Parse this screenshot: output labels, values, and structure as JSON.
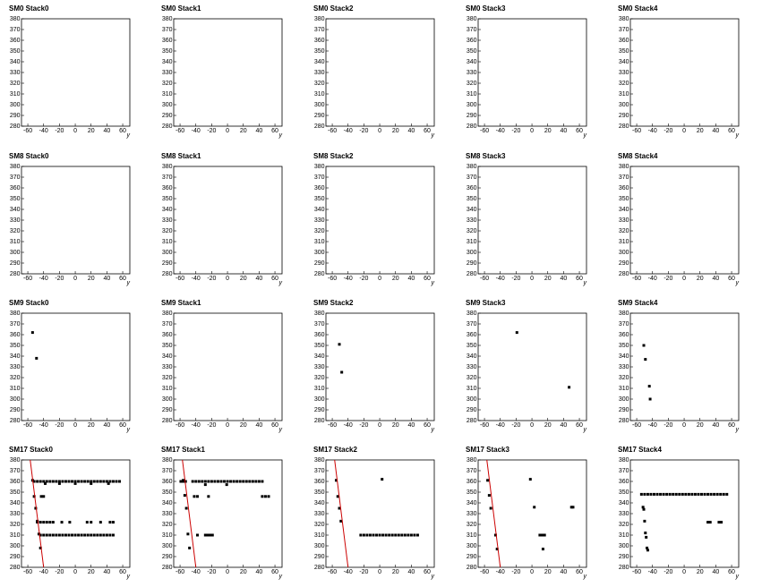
{
  "chart_data": [
    {
      "type": "scatter",
      "title": "SM0 Stack0",
      "xlabel": "y",
      "x": [],
      "values": [],
      "xlim": [
        -68,
        69
      ],
      "ylim": [
        280,
        380
      ],
      "xticks": [
        -60,
        -40,
        -20,
        0,
        20,
        40,
        60
      ],
      "yticks": [
        280,
        290,
        300,
        310,
        320,
        330,
        340,
        350,
        360,
        370,
        380
      ],
      "color": "#000000"
    },
    {
      "type": "scatter",
      "title": "SM0 Stack1",
      "xlabel": "y",
      "x": [],
      "values": [],
      "xlim": [
        -68,
        69
      ],
      "ylim": [
        280,
        380
      ],
      "xticks": [
        -60,
        -40,
        -20,
        0,
        20,
        40,
        60
      ],
      "yticks": [
        280,
        290,
        300,
        310,
        320,
        330,
        340,
        350,
        360,
        370,
        380
      ],
      "color": "#000000"
    },
    {
      "type": "scatter",
      "title": "SM0 Stack2",
      "xlabel": "y",
      "x": [],
      "values": [],
      "xlim": [
        -68,
        69
      ],
      "ylim": [
        280,
        380
      ],
      "xticks": [
        -60,
        -40,
        -20,
        0,
        20,
        40,
        60
      ],
      "yticks": [
        280,
        290,
        300,
        310,
        320,
        330,
        340,
        350,
        360,
        370,
        380
      ],
      "color": "#000000"
    },
    {
      "type": "scatter",
      "title": "SM0 Stack3",
      "xlabel": "y",
      "x": [],
      "values": [],
      "xlim": [
        -68,
        69
      ],
      "ylim": [
        280,
        380
      ],
      "xticks": [
        -60,
        -40,
        -20,
        0,
        20,
        40,
        60
      ],
      "yticks": [
        280,
        290,
        300,
        310,
        320,
        330,
        340,
        350,
        360,
        370,
        380
      ],
      "color": "#000000"
    },
    {
      "type": "scatter",
      "title": "SM0 Stack4",
      "xlabel": "y",
      "x": [],
      "values": [],
      "xlim": [
        -68,
        69
      ],
      "ylim": [
        280,
        380
      ],
      "xticks": [
        -60,
        -40,
        -20,
        0,
        20,
        40,
        60
      ],
      "yticks": [
        280,
        290,
        300,
        310,
        320,
        330,
        340,
        350,
        360,
        370,
        380
      ],
      "color": "#000000"
    },
    {
      "type": "scatter",
      "title": "SM8 Stack0",
      "xlabel": "y",
      "x": [],
      "values": [],
      "xlim": [
        -68,
        69
      ],
      "ylim": [
        280,
        380
      ],
      "xticks": [
        -60,
        -40,
        -20,
        0,
        20,
        40,
        60
      ],
      "yticks": [
        280,
        290,
        300,
        310,
        320,
        330,
        340,
        350,
        360,
        370,
        380
      ],
      "color": "#000000"
    },
    {
      "type": "scatter",
      "title": "SM8 Stack1",
      "xlabel": "y",
      "x": [],
      "values": [],
      "xlim": [
        -68,
        69
      ],
      "ylim": [
        280,
        380
      ],
      "xticks": [
        -60,
        -40,
        -20,
        0,
        20,
        40,
        60
      ],
      "yticks": [
        280,
        290,
        300,
        310,
        320,
        330,
        340,
        350,
        360,
        370,
        380
      ],
      "color": "#000000"
    },
    {
      "type": "scatter",
      "title": "SM8 Stack2",
      "xlabel": "y",
      "x": [],
      "values": [],
      "xlim": [
        -68,
        69
      ],
      "ylim": [
        280,
        380
      ],
      "xticks": [
        -60,
        -40,
        -20,
        0,
        20,
        40,
        60
      ],
      "yticks": [
        280,
        290,
        300,
        310,
        320,
        330,
        340,
        350,
        360,
        370,
        380
      ],
      "color": "#000000"
    },
    {
      "type": "scatter",
      "title": "SM8 Stack3",
      "xlabel": "y",
      "x": [],
      "values": [],
      "xlim": [
        -68,
        69
      ],
      "ylim": [
        280,
        380
      ],
      "xticks": [
        -60,
        -40,
        -20,
        0,
        20,
        40,
        60
      ],
      "yticks": [
        280,
        290,
        300,
        310,
        320,
        330,
        340,
        350,
        360,
        370,
        380
      ],
      "color": "#000000"
    },
    {
      "type": "scatter",
      "title": "SM8 Stack4",
      "xlabel": "y",
      "x": [],
      "values": [],
      "xlim": [
        -68,
        69
      ],
      "ylim": [
        280,
        380
      ],
      "xticks": [
        -60,
        -40,
        -20,
        0,
        20,
        40,
        60
      ],
      "yticks": [
        280,
        290,
        300,
        310,
        320,
        330,
        340,
        350,
        360,
        370,
        380
      ],
      "color": "#000000"
    },
    {
      "type": "scatter",
      "title": "SM9 Stack0",
      "xlabel": "y",
      "x": [
        -54,
        -49
      ],
      "values": [
        362,
        338
      ],
      "xlim": [
        -68,
        69
      ],
      "ylim": [
        280,
        380
      ],
      "xticks": [
        -60,
        -40,
        -20,
        0,
        20,
        40,
        60
      ],
      "yticks": [
        280,
        290,
        300,
        310,
        320,
        330,
        340,
        350,
        360,
        370,
        380
      ],
      "color": "#000000"
    },
    {
      "type": "scatter",
      "title": "SM9 Stack1",
      "xlabel": "y",
      "x": [],
      "values": [],
      "xlim": [
        -68,
        69
      ],
      "ylim": [
        280,
        380
      ],
      "xticks": [
        -60,
        -40,
        -20,
        0,
        20,
        40,
        60
      ],
      "yticks": [
        280,
        290,
        300,
        310,
        320,
        330,
        340,
        350,
        360,
        370,
        380
      ],
      "color": "#000000"
    },
    {
      "type": "scatter",
      "title": "SM9 Stack2",
      "xlabel": "y",
      "x": [
        -51,
        -48
      ],
      "values": [
        351,
        325
      ],
      "xlim": [
        -68,
        69
      ],
      "ylim": [
        280,
        380
      ],
      "xticks": [
        -60,
        -40,
        -20,
        0,
        20,
        40,
        60
      ],
      "yticks": [
        280,
        290,
        300,
        310,
        320,
        330,
        340,
        350,
        360,
        370,
        380
      ],
      "color": "#000000"
    },
    {
      "type": "scatter",
      "title": "SM9 Stack3",
      "xlabel": "y",
      "x": [
        -19,
        47
      ],
      "values": [
        362,
        311
      ],
      "xlim": [
        -68,
        69
      ],
      "ylim": [
        280,
        380
      ],
      "xticks": [
        -60,
        -40,
        -20,
        0,
        20,
        40,
        60
      ],
      "yticks": [
        280,
        290,
        300,
        310,
        320,
        330,
        340,
        350,
        360,
        370,
        380
      ],
      "color": "#000000"
    },
    {
      "type": "scatter",
      "title": "SM9 Stack4",
      "xlabel": "y",
      "x": [
        -51,
        -49,
        -44,
        -43
      ],
      "values": [
        350,
        337,
        312,
        300
      ],
      "xlim": [
        -68,
        69
      ],
      "ylim": [
        280,
        380
      ],
      "xticks": [
        -60,
        -40,
        -20,
        0,
        20,
        40,
        60
      ],
      "yticks": [
        280,
        290,
        300,
        310,
        320,
        330,
        340,
        350,
        360,
        370,
        380
      ],
      "color": "#000000"
    },
    {
      "type": "scatter",
      "title": "SM17 Stack0",
      "xlabel": "y",
      "x": [
        -54,
        -52,
        -50,
        -48,
        -46,
        -44,
        -52,
        -48,
        -44,
        -40,
        -36,
        -32,
        -28,
        -24,
        -20,
        -16,
        -12,
        -8,
        -4,
        0,
        4,
        8,
        12,
        16,
        20,
        24,
        28,
        32,
        36,
        40,
        44,
        48,
        52,
        56,
        -38,
        -20,
        0,
        20,
        42,
        -43,
        -40,
        -48,
        -44,
        -40,
        -36,
        -32,
        -28,
        -17,
        -7,
        15,
        20,
        32,
        44,
        48,
        -44,
        -40,
        -36,
        -32,
        -28,
        -24,
        -20,
        -16,
        -12,
        -8,
        -4,
        0,
        4,
        8,
        12,
        16,
        20,
        24,
        28,
        32,
        36,
        40,
        44,
        48
      ],
      "values": [
        361,
        346,
        335,
        323,
        311,
        298,
        360,
        360,
        360,
        360,
        360,
        360,
        360,
        360,
        360,
        360,
        360,
        360,
        360,
        360,
        360,
        360,
        360,
        360,
        360,
        360,
        360,
        360,
        360,
        360,
        360,
        360,
        360,
        360,
        358,
        358,
        358,
        358,
        358,
        346,
        346,
        322,
        322,
        322,
        322,
        322,
        322,
        322,
        322,
        322,
        322,
        322,
        322,
        322,
        310,
        310,
        310,
        310,
        310,
        310,
        310,
        310,
        310,
        310,
        310,
        310,
        310,
        310,
        310,
        310,
        310,
        310,
        310,
        310,
        310,
        310,
        310,
        310
      ],
      "fit": {
        "x": [
          -57,
          -40
        ],
        "values": [
          380,
          280
        ],
        "color": "#cc0000"
      },
      "xlim": [
        -68,
        69
      ],
      "ylim": [
        280,
        380
      ],
      "xticks": [
        -60,
        -40,
        -20,
        0,
        20,
        40,
        60
      ],
      "yticks": [
        280,
        290,
        300,
        310,
        320,
        330,
        340,
        350,
        360,
        370,
        380
      ],
      "color": "#000000"
    },
    {
      "type": "scatter",
      "title": "SM17 Stack1",
      "xlabel": "y",
      "x": [
        -56,
        -54,
        -52,
        -50,
        -48,
        -59,
        -56,
        -53,
        -44,
        -40,
        -36,
        -32,
        -28,
        -24,
        -20,
        -16,
        -12,
        -8,
        -4,
        0,
        4,
        8,
        12,
        16,
        20,
        24,
        28,
        32,
        36,
        40,
        44,
        -28,
        -1,
        -42,
        -38,
        -24,
        44,
        48,
        52,
        -38,
        -28,
        -25,
        -22,
        -19
      ],
      "values": [
        361,
        347,
        335,
        311,
        298,
        360,
        360,
        360,
        360,
        360,
        360,
        360,
        360,
        360,
        360,
        360,
        360,
        360,
        360,
        360,
        360,
        360,
        360,
        360,
        360,
        360,
        360,
        360,
        360,
        360,
        360,
        357,
        357,
        346,
        346,
        346,
        346,
        346,
        346,
        310,
        310,
        310,
        310,
        310
      ],
      "fit": {
        "x": [
          -57,
          -40
        ],
        "values": [
          380,
          280
        ],
        "color": "#cc0000"
      },
      "xlim": [
        -68,
        69
      ],
      "ylim": [
        280,
        380
      ],
      "xticks": [
        -60,
        -40,
        -20,
        0,
        20,
        40,
        60
      ],
      "yticks": [
        280,
        290,
        300,
        310,
        320,
        330,
        340,
        350,
        360,
        370,
        380
      ],
      "color": "#000000"
    },
    {
      "type": "scatter",
      "title": "SM17 Stack2",
      "xlabel": "y",
      "x": [
        -55,
        -53,
        -51,
        -49,
        3,
        -24,
        -20,
        -16,
        -12,
        -8,
        -4,
        0,
        4,
        8,
        12,
        16,
        20,
        24,
        28,
        32,
        36,
        40,
        44,
        48
      ],
      "values": [
        361,
        346,
        335,
        323,
        362,
        310,
        310,
        310,
        310,
        310,
        310,
        310,
        310,
        310,
        310,
        310,
        310,
        310,
        310,
        310,
        310,
        310,
        310,
        310
      ],
      "fit": {
        "x": [
          -57,
          -40
        ],
        "values": [
          380,
          280
        ],
        "color": "#cc0000"
      },
      "xlim": [
        -68,
        69
      ],
      "ylim": [
        280,
        380
      ],
      "xticks": [
        -60,
        -40,
        -20,
        0,
        20,
        40,
        60
      ],
      "yticks": [
        280,
        290,
        300,
        310,
        320,
        330,
        340,
        350,
        360,
        370,
        380
      ],
      "color": "#000000"
    },
    {
      "type": "scatter",
      "title": "SM17 Stack3",
      "xlabel": "y",
      "x": [
        -56,
        -54,
        -52,
        -46,
        -44,
        -2,
        3,
        10,
        12,
        14,
        16,
        14,
        50,
        52
      ],
      "values": [
        361,
        347,
        335,
        310,
        297,
        362,
        336,
        310,
        310,
        310,
        310,
        297,
        336,
        336
      ],
      "fit": {
        "x": [
          -57,
          -40
        ],
        "values": [
          380,
          280
        ],
        "color": "#cc0000"
      },
      "xlim": [
        -68,
        69
      ],
      "ylim": [
        280,
        380
      ],
      "xticks": [
        -60,
        -40,
        -20,
        0,
        20,
        40,
        60
      ],
      "yticks": [
        280,
        290,
        300,
        310,
        320,
        330,
        340,
        350,
        360,
        370,
        380
      ],
      "color": "#000000"
    },
    {
      "type": "scatter",
      "title": "SM17 Stack4",
      "xlabel": "y",
      "x": [
        -54,
        -50,
        -46,
        -42,
        -38,
        -34,
        -30,
        -26,
        -22,
        -18,
        -14,
        -10,
        -6,
        -2,
        2,
        6,
        10,
        14,
        18,
        22,
        26,
        30,
        34,
        38,
        42,
        46,
        50,
        54,
        -52,
        -51,
        -50,
        -49,
        -48,
        -47,
        -46,
        30,
        33,
        44,
        47
      ],
      "values": [
        348,
        348,
        348,
        348,
        348,
        348,
        348,
        348,
        348,
        348,
        348,
        348,
        348,
        348,
        348,
        348,
        348,
        348,
        348,
        348,
        348,
        348,
        348,
        348,
        348,
        348,
        348,
        348,
        336,
        334,
        323,
        312,
        308,
        298,
        296,
        322,
        322,
        322,
        322
      ],
      "xlim": [
        -68,
        69
      ],
      "ylim": [
        280,
        380
      ],
      "xticks": [
        -60,
        -40,
        -20,
        0,
        20,
        40,
        60
      ],
      "yticks": [
        280,
        290,
        300,
        310,
        320,
        330,
        340,
        350,
        360,
        370,
        380
      ],
      "color": "#000000"
    }
  ]
}
